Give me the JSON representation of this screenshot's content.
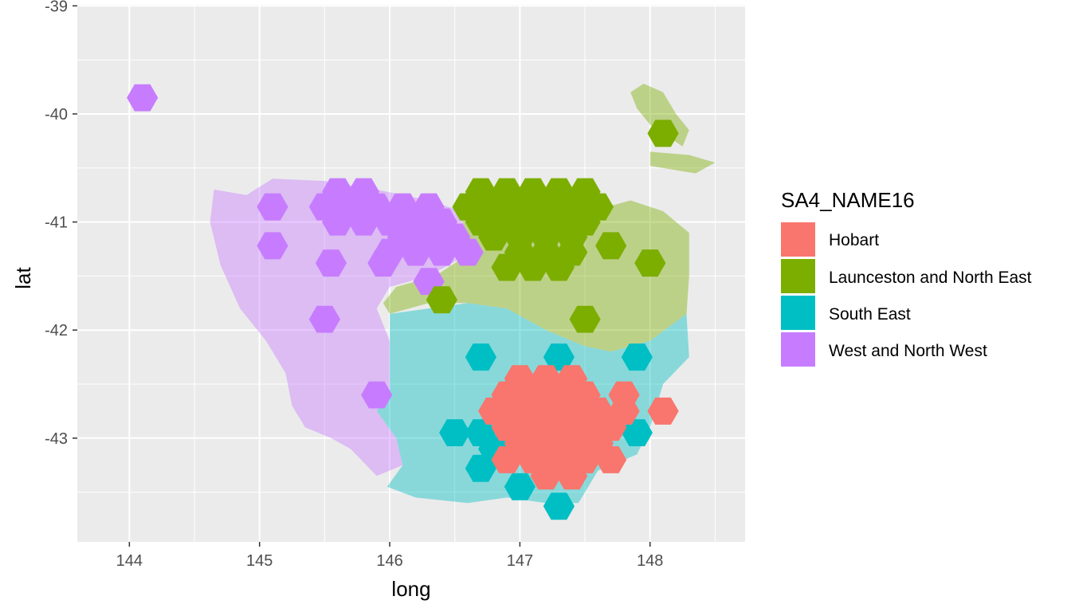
{
  "chart_data": {
    "type": "map",
    "title": "",
    "xlabel": "long",
    "ylabel": "lat",
    "xlim": [
      143.6,
      148.73
    ],
    "ylim": [
      -43.96,
      -38.99
    ],
    "x_breaks": [
      144,
      145,
      146,
      147,
      148
    ],
    "x_tick_labels": [
      "144",
      "145",
      "146",
      "147",
      "148"
    ],
    "y_breaks": [
      -39,
      -40,
      -41,
      -42,
      -43
    ],
    "y_tick_labels": [
      "-39",
      "-40",
      "-41",
      "-42",
      "-43"
    ],
    "grid": true,
    "legend": {
      "title": "SA4_NAME16",
      "position": "right",
      "entries": [
        {
          "name": "Hobart",
          "color": "#F8766D"
        },
        {
          "name": "Launceston and North East",
          "color": "#7CAE00"
        },
        {
          "name": "South East",
          "color": "#00BFC4"
        },
        {
          "name": "West and North West",
          "color": "#C77CFF"
        }
      ]
    },
    "hex_radius_deg": 0.12,
    "regions": [
      {
        "name": "West and North West",
        "color": "#C77CFF",
        "outline": [
          [
            145.1,
            -40.6
          ],
          [
            145.5,
            -40.62
          ],
          [
            145.9,
            -40.7
          ],
          [
            146.3,
            -40.8
          ],
          [
            146.55,
            -40.9
          ],
          [
            146.6,
            -41.3
          ],
          [
            146.3,
            -41.5
          ],
          [
            146.0,
            -41.6
          ],
          [
            145.9,
            -41.8
          ],
          [
            146.0,
            -42.1
          ],
          [
            146.0,
            -42.55
          ],
          [
            145.9,
            -42.75
          ],
          [
            146.05,
            -43.0
          ],
          [
            146.1,
            -43.25
          ],
          [
            145.9,
            -43.35
          ],
          [
            145.7,
            -43.1
          ],
          [
            145.55,
            -43.0
          ],
          [
            145.35,
            -42.9
          ],
          [
            145.25,
            -42.7
          ],
          [
            145.2,
            -42.4
          ],
          [
            145.05,
            -42.1
          ],
          [
            144.85,
            -41.8
          ],
          [
            144.7,
            -41.4
          ],
          [
            144.62,
            -41.0
          ],
          [
            144.65,
            -40.7
          ],
          [
            144.9,
            -40.75
          ]
        ],
        "hexes": [
          [
            144.1,
            -39.85
          ],
          [
            145.1,
            -40.86
          ],
          [
            145.1,
            -41.22
          ],
          [
            145.5,
            -40.86
          ],
          [
            145.6,
            -40.72
          ],
          [
            145.7,
            -40.86
          ],
          [
            145.8,
            -40.72
          ],
          [
            145.9,
            -40.86
          ],
          [
            146.1,
            -40.86
          ],
          [
            146.3,
            -40.86
          ],
          [
            145.6,
            -41.0
          ],
          [
            145.8,
            -41.0
          ],
          [
            146.0,
            -41.0
          ],
          [
            146.2,
            -41.0
          ],
          [
            146.4,
            -41.0
          ],
          [
            146.1,
            -41.14
          ],
          [
            146.3,
            -41.14
          ],
          [
            146.5,
            -41.14
          ],
          [
            146.0,
            -41.28
          ],
          [
            146.2,
            -41.28
          ],
          [
            146.4,
            -41.28
          ],
          [
            146.6,
            -41.28
          ],
          [
            145.55,
            -41.38
          ],
          [
            145.95,
            -41.38
          ],
          [
            146.3,
            -41.55
          ],
          [
            145.5,
            -41.9
          ],
          [
            145.9,
            -42.6
          ]
        ]
      },
      {
        "name": "Launceston and North East",
        "color": "#7CAE00",
        "outline": [
          [
            146.55,
            -40.9
          ],
          [
            146.95,
            -40.95
          ],
          [
            147.4,
            -40.95
          ],
          [
            147.85,
            -40.8
          ],
          [
            148.1,
            -40.9
          ],
          [
            148.3,
            -41.1
          ],
          [
            148.3,
            -41.5
          ],
          [
            148.28,
            -41.85
          ],
          [
            148.0,
            -42.1
          ],
          [
            147.7,
            -42.2
          ],
          [
            147.5,
            -42.15
          ],
          [
            147.2,
            -42.0
          ],
          [
            146.9,
            -41.8
          ],
          [
            146.6,
            -41.75
          ],
          [
            146.3,
            -41.75
          ],
          [
            146.0,
            -41.85
          ],
          [
            145.95,
            -41.75
          ],
          [
            146.05,
            -41.6
          ],
          [
            146.35,
            -41.5
          ],
          [
            146.6,
            -41.3
          ]
        ],
        "islands": [
          [
            [
              147.85,
              -39.8
            ],
            [
              147.95,
              -39.72
            ],
            [
              148.1,
              -39.8
            ],
            [
              148.2,
              -40.0
            ],
            [
              148.3,
              -40.15
            ],
            [
              148.25,
              -40.3
            ],
            [
              148.0,
              -40.1
            ],
            [
              147.9,
              -39.95
            ]
          ],
          [
            [
              148.0,
              -40.35
            ],
            [
              148.3,
              -40.38
            ],
            [
              148.5,
              -40.45
            ],
            [
              148.35,
              -40.55
            ],
            [
              148.0,
              -40.48
            ]
          ]
        ],
        "hexes": [
          [
            148.1,
            -40.18
          ],
          [
            146.7,
            -40.72
          ],
          [
            146.9,
            -40.72
          ],
          [
            147.1,
            -40.72
          ],
          [
            147.3,
            -40.72
          ],
          [
            147.5,
            -40.72
          ],
          [
            146.6,
            -40.86
          ],
          [
            146.8,
            -40.86
          ],
          [
            147.0,
            -40.86
          ],
          [
            147.2,
            -40.86
          ],
          [
            147.4,
            -40.86
          ],
          [
            147.6,
            -40.86
          ],
          [
            146.7,
            -41.0
          ],
          [
            146.9,
            -41.0
          ],
          [
            147.1,
            -41.0
          ],
          [
            147.3,
            -41.0
          ],
          [
            147.5,
            -41.0
          ],
          [
            146.8,
            -41.14
          ],
          [
            147.0,
            -41.14
          ],
          [
            147.2,
            -41.14
          ],
          [
            147.4,
            -41.14
          ],
          [
            147.0,
            -41.28
          ],
          [
            147.2,
            -41.28
          ],
          [
            147.4,
            -41.28
          ],
          [
            146.9,
            -41.42
          ],
          [
            147.1,
            -41.42
          ],
          [
            147.3,
            -41.42
          ],
          [
            147.7,
            -41.22
          ],
          [
            148.0,
            -41.38
          ],
          [
            146.4,
            -41.72
          ],
          [
            147.5,
            -41.9
          ]
        ]
      },
      {
        "name": "South East",
        "color": "#00BFC4",
        "outline": [
          [
            146.0,
            -41.85
          ],
          [
            146.6,
            -41.75
          ],
          [
            146.9,
            -41.8
          ],
          [
            147.2,
            -42.0
          ],
          [
            147.5,
            -42.15
          ],
          [
            147.7,
            -42.2
          ],
          [
            148.0,
            -42.1
          ],
          [
            148.28,
            -41.85
          ],
          [
            148.3,
            -42.25
          ],
          [
            148.1,
            -42.5
          ],
          [
            148.0,
            -42.9
          ],
          [
            147.9,
            -43.15
          ],
          [
            147.6,
            -43.3
          ],
          [
            147.45,
            -43.6
          ],
          [
            147.2,
            -43.6
          ],
          [
            146.9,
            -43.55
          ],
          [
            146.6,
            -43.6
          ],
          [
            146.2,
            -43.55
          ],
          [
            145.98,
            -43.45
          ],
          [
            146.1,
            -43.25
          ],
          [
            146.05,
            -43.0
          ],
          [
            145.9,
            -42.75
          ],
          [
            146.0,
            -42.55
          ],
          [
            146.0,
            -42.1
          ]
        ],
        "hexes": [
          [
            146.7,
            -42.25
          ],
          [
            147.3,
            -42.25
          ],
          [
            147.9,
            -42.25
          ],
          [
            146.5,
            -42.95
          ],
          [
            146.7,
            -42.95
          ],
          [
            146.8,
            -43.1
          ],
          [
            146.7,
            -43.28
          ],
          [
            147.0,
            -43.45
          ],
          [
            147.3,
            -43.63
          ],
          [
            147.9,
            -42.95
          ]
        ]
      },
      {
        "name": "Hobart",
        "color": "#F8766D",
        "outline": [],
        "hexes": [
          [
            147.0,
            -42.45
          ],
          [
            147.2,
            -42.45
          ],
          [
            147.4,
            -42.45
          ],
          [
            146.9,
            -42.6
          ],
          [
            147.1,
            -42.6
          ],
          [
            147.3,
            -42.6
          ],
          [
            147.5,
            -42.6
          ],
          [
            147.8,
            -42.6
          ],
          [
            146.8,
            -42.75
          ],
          [
            147.0,
            -42.75
          ],
          [
            147.2,
            -42.75
          ],
          [
            147.4,
            -42.75
          ],
          [
            147.6,
            -42.75
          ],
          [
            147.8,
            -42.75
          ],
          [
            148.1,
            -42.75
          ],
          [
            146.9,
            -42.9
          ],
          [
            147.1,
            -42.9
          ],
          [
            147.3,
            -42.9
          ],
          [
            147.5,
            -42.9
          ],
          [
            147.7,
            -42.9
          ],
          [
            147.0,
            -43.05
          ],
          [
            147.2,
            -43.05
          ],
          [
            147.4,
            -43.05
          ],
          [
            147.6,
            -43.05
          ],
          [
            146.9,
            -43.2
          ],
          [
            147.1,
            -43.2
          ],
          [
            147.3,
            -43.2
          ],
          [
            147.5,
            -43.2
          ],
          [
            147.7,
            -43.2
          ],
          [
            147.2,
            -43.35
          ],
          [
            147.4,
            -43.35
          ]
        ]
      }
    ]
  }
}
